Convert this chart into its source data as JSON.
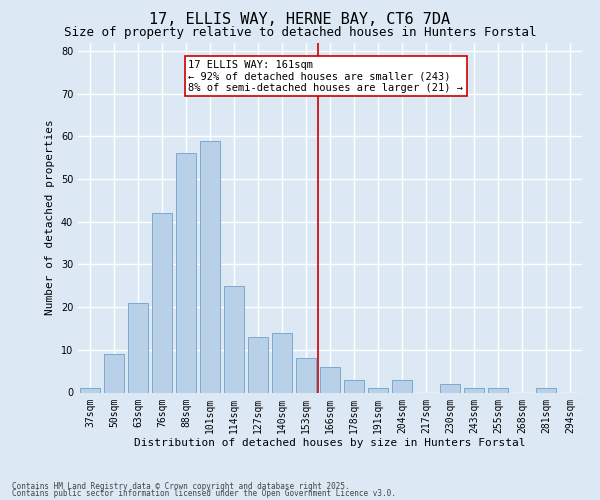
{
  "title": "17, ELLIS WAY, HERNE BAY, CT6 7DA",
  "subtitle": "Size of property relative to detached houses in Hunters Forstal",
  "xlabel": "Distribution of detached houses by size in Hunters Forstal",
  "ylabel": "Number of detached properties",
  "categories": [
    "37sqm",
    "50sqm",
    "63sqm",
    "76sqm",
    "88sqm",
    "101sqm",
    "114sqm",
    "127sqm",
    "140sqm",
    "153sqm",
    "166sqm",
    "178sqm",
    "191sqm",
    "204sqm",
    "217sqm",
    "230sqm",
    "243sqm",
    "255sqm",
    "268sqm",
    "281sqm",
    "294sqm"
  ],
  "values": [
    1,
    9,
    21,
    42,
    56,
    59,
    25,
    13,
    14,
    8,
    6,
    3,
    1,
    3,
    0,
    2,
    1,
    1,
    0,
    1,
    0
  ],
  "bar_color": "#b8d0e8",
  "bar_edge_color": "#7aaacf",
  "background_color": "#dce9f5",
  "grid_color": "#ffffff",
  "vline_color": "#cc0000",
  "annotation_line1": "17 ELLIS WAY: 161sqm",
  "annotation_line2": "← 92% of detached houses are smaller (243)",
  "annotation_line3": "8% of semi-detached houses are larger (21) →",
  "annotation_box_color": "#cc0000",
  "ylim": [
    0,
    82
  ],
  "yticks": [
    0,
    10,
    20,
    30,
    40,
    50,
    60,
    70,
    80
  ],
  "footer1": "Contains HM Land Registry data © Crown copyright and database right 2025.",
  "footer2": "Contains public sector information licensed under the Open Government Licence v3.0.",
  "title_fontsize": 11,
  "subtitle_fontsize": 9,
  "tick_fontsize": 7,
  "ylabel_fontsize": 8,
  "xlabel_fontsize": 8,
  "annotation_fontsize": 7.5,
  "footer_fontsize": 5.5
}
